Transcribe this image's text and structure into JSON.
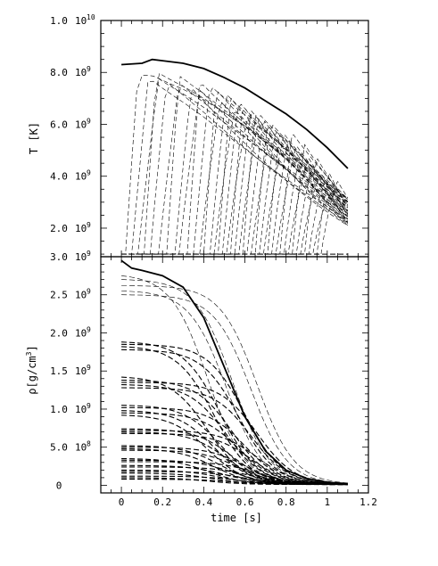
{
  "chart_data": [
    {
      "type": "line",
      "panel": "top",
      "ylabel": "T [K]",
      "xlim": [
        -0.1,
        1.2
      ],
      "ylim": [
        900000000.0,
        10000000000.0
      ],
      "ytick_labels": [
        {
          "v": 2000000000.0,
          "mant": "2.0",
          "base": "10",
          "exp": "9"
        },
        {
          "v": 4000000000.0,
          "mant": "4.0",
          "base": "10",
          "exp": "9"
        },
        {
          "v": 6000000000.0,
          "mant": "6.0",
          "base": "10",
          "exp": "9"
        },
        {
          "v": 8000000000.0,
          "mant": "8.0",
          "base": "10",
          "exp": "9"
        },
        {
          "v": 10000000000.0,
          "mant": "1.0",
          "base": "10",
          "exp": "10"
        }
      ],
      "grid": false,
      "series": [
        {
          "style": "solid",
          "x": [
            0.0,
            0.1,
            0.15,
            0.2,
            0.3,
            0.4,
            0.5,
            0.6,
            0.7,
            0.8,
            0.9,
            1.0,
            1.1
          ],
          "y": [
            8300000000.0,
            8350000000.0,
            8500000000.0,
            8450000000.0,
            8350000000.0,
            8150000000.0,
            7800000000.0,
            7400000000.0,
            6900000000.0,
            6400000000.0,
            5800000000.0,
            5100000000.0,
            4300000000.0
          ]
        },
        {
          "style": "dashed",
          "x": [
            0.0,
            1.1
          ],
          "y": [
            1000000000.0,
            1000000000.0
          ]
        }
      ],
      "ignition_times": [
        0.02,
        0.05,
        0.08,
        0.11,
        0.14,
        0.18,
        0.22,
        0.26,
        0.28,
        0.32,
        0.35,
        0.38,
        0.4,
        0.43,
        0.45,
        0.47,
        0.49,
        0.51,
        0.53,
        0.55,
        0.57,
        0.59,
        0.61,
        0.63,
        0.65,
        0.67,
        0.69,
        0.71,
        0.73,
        0.75,
        0.77,
        0.79,
        0.81,
        0.83,
        0.85,
        0.87,
        0.89,
        0.91,
        0.93,
        0.95,
        0.97
      ]
    },
    {
      "type": "line",
      "panel": "bottom",
      "xlabel": "time [s]",
      "ylabel_main": "ρ[g/cm",
      "ylabel_sup": "3",
      "ylabel_end": "]",
      "xlim": [
        -0.1,
        1.2
      ],
      "ylim": [
        -100000000.0,
        3000000000.0
      ],
      "xtick_labels": [
        {
          "v": 0,
          "t": "0"
        },
        {
          "v": 0.2,
          "t": "0.2"
        },
        {
          "v": 0.4,
          "t": "0.4"
        },
        {
          "v": 0.6,
          "t": "0.6"
        },
        {
          "v": 0.8,
          "t": "0.8"
        },
        {
          "v": 1.0,
          "t": "1"
        },
        {
          "v": 1.2,
          "t": "1.2"
        }
      ],
      "ytick_labels": [
        {
          "v": 0,
          "mant": "0",
          "base": "",
          "exp": ""
        },
        {
          "v": 500000000.0,
          "mant": "5.0",
          "base": "10",
          "exp": "8"
        },
        {
          "v": 1000000000.0,
          "mant": "1.0",
          "base": "10",
          "exp": "9"
        },
        {
          "v": 1500000000.0,
          "mant": "1.5",
          "base": "10",
          "exp": "9"
        },
        {
          "v": 2000000000.0,
          "mant": "2.0",
          "base": "10",
          "exp": "9"
        },
        {
          "v": 2500000000.0,
          "mant": "2.5",
          "base": "10",
          "exp": "9"
        },
        {
          "v": 3000000000.0,
          "mant": "3.0",
          "base": "10",
          "exp": "9"
        }
      ],
      "grid": false,
      "series": [
        {
          "style": "solid",
          "x": [
            0.0,
            0.05,
            0.1,
            0.2,
            0.3,
            0.4,
            0.5,
            0.6,
            0.7,
            0.8,
            0.9,
            1.0,
            1.1
          ],
          "y": [
            2950000000.0,
            2850000000.0,
            2820000000.0,
            2750000000.0,
            2600000000.0,
            2200000000.0,
            1550000000.0,
            900000000.0,
            450000000.0,
            200000000.0,
            90000000.0,
            40000000.0,
            20000000.0
          ]
        }
      ],
      "initial_densities": [
        2750000000.0,
        2700000000.0,
        2620000000.0,
        2550000000.0,
        2500000000.0,
        1880000000.0,
        1850000000.0,
        1820000000.0,
        1780000000.0,
        1420000000.0,
        1380000000.0,
        1350000000.0,
        1320000000.0,
        1280000000.0,
        1050000000.0,
        1020000000.0,
        980000000.0,
        950000000.0,
        920000000.0,
        740000000.0,
        720000000.0,
        700000000.0,
        680000000.0,
        520000000.0,
        500000000.0,
        480000000.0,
        460000000.0,
        350000000.0,
        330000000.0,
        310000000.0,
        260000000.0,
        240000000.0,
        200000000.0,
        180000000.0,
        160000000.0,
        120000000.0,
        100000000.0,
        80000000.0
      ]
    }
  ]
}
